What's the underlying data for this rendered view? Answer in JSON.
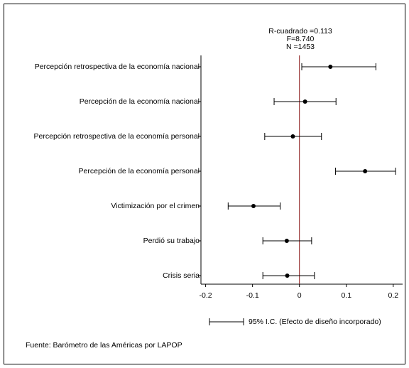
{
  "chart_data": {
    "type": "coefplot",
    "annotations": [
      "R-cuadrado =0.113",
      "F=8.740",
      "N =1453"
    ],
    "categories": [
      "Percepción retrospectiva de la economía nacional",
      "Percepción de la economía nacional",
      "Percepción retrospectiva de la economía personal",
      "Percepción de la economía personal",
      "Victimización por el crimen",
      "Perdió su trabajo",
      "Crisis seria"
    ],
    "values": [
      0.066,
      0.012,
      -0.014,
      0.14,
      -0.098,
      -0.027,
      -0.026
    ],
    "lower": [
      0.005,
      -0.054,
      -0.074,
      0.077,
      -0.152,
      -0.078,
      -0.078
    ],
    "upper": [
      0.163,
      0.078,
      0.047,
      0.205,
      -0.041,
      0.026,
      0.032
    ],
    "color": "#000000",
    "reference_line": 0,
    "reference_color": "#8b1a1a",
    "xlim": [
      -0.21,
      0.22
    ],
    "xticks": [
      -0.2,
      -0.1,
      0,
      0.1,
      0.2
    ],
    "legend": "95% I.C. (Efecto de diseño incorporado)",
    "source": "Fuente: Barómetro de las Américas por LAPOP"
  }
}
